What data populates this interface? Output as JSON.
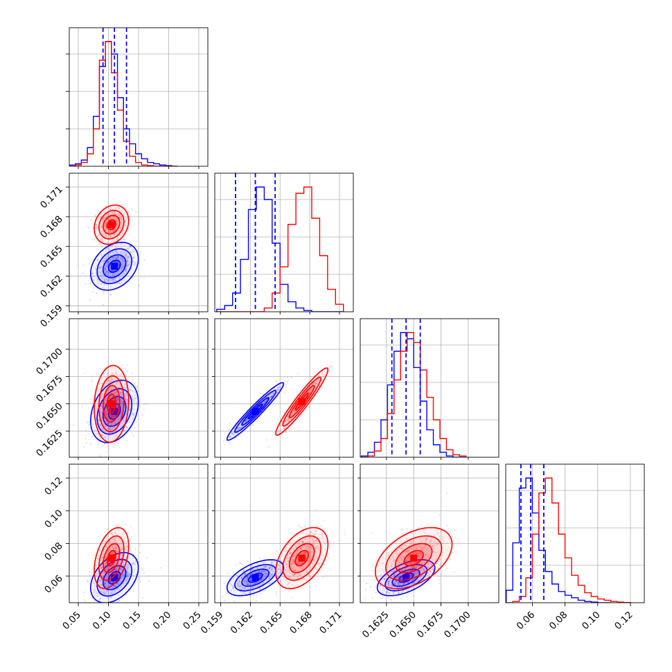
{
  "colors": {
    "series_a": "#0000ff",
    "series_b": "#ff0000",
    "grid": "#b0b0b0",
    "quantile_line": "#0000ff"
  },
  "chart_data": {
    "type": "corner",
    "grid": true,
    "variables": [
      {
        "range": [
          0.035,
          0.265
        ],
        "ticks": [
          0.05,
          0.1,
          0.15,
          0.2,
          0.25
        ],
        "tick_labels": [
          "0.05",
          "0.10",
          "0.15",
          "0.20",
          "0.25"
        ]
      },
      {
        "range": [
          0.1584,
          0.1724
        ],
        "ticks": [
          0.159,
          0.162,
          0.165,
          0.168,
          0.171
        ],
        "tick_labels": [
          "0.159",
          "0.162",
          "0.165",
          "0.168",
          "0.171"
        ]
      },
      {
        "range": [
          0.1601,
          0.1728
        ],
        "ticks": [
          0.1625,
          0.165,
          0.1675,
          0.17
        ],
        "tick_labels": [
          "0.1625",
          "0.1650",
          "0.1675",
          "0.1700"
        ]
      },
      {
        "range": [
          0.0437,
          0.1285
        ],
        "ticks": [
          0.06,
          0.08,
          0.1,
          0.12
        ],
        "tick_labels": [
          "0.06",
          "0.08",
          "0.10",
          "0.12"
        ]
      }
    ],
    "histograms": [
      {
        "blue_quantile_lines": [
          0.091,
          0.11,
          0.13
        ],
        "blue": {
          "x": [
            0.04,
            0.05,
            0.06,
            0.07,
            0.08,
            0.09,
            0.1,
            0.11,
            0.12,
            0.13,
            0.14,
            0.15,
            0.16,
            0.17,
            0.18,
            0.19,
            0.2,
            0.21
          ],
          "y": [
            0.01,
            0.02,
            0.05,
            0.15,
            0.4,
            0.8,
            1.0,
            0.9,
            0.55,
            0.3,
            0.18,
            0.1,
            0.06,
            0.03,
            0.02,
            0.01,
            0.005,
            0.0
          ]
        },
        "red": {
          "x": [
            0.04,
            0.05,
            0.06,
            0.07,
            0.08,
            0.09,
            0.1,
            0.11,
            0.12,
            0.13,
            0.14,
            0.15,
            0.16,
            0.17,
            0.18,
            0.19,
            0.2,
            0.21
          ],
          "y": [
            0.0,
            0.01,
            0.03,
            0.1,
            0.3,
            0.85,
            1.0,
            0.75,
            0.45,
            0.2,
            0.08,
            0.03,
            0.01,
            0.005,
            0.0,
            0.0,
            0.0,
            0.0
          ]
        }
      },
      {
        "blue_quantile_lines": [
          0.1605,
          0.1625,
          0.1645
        ],
        "blue": {
          "x": [
            0.159,
            0.1598,
            0.1606,
            0.1614,
            0.1622,
            0.163,
            0.1638,
            0.1646,
            0.1654,
            0.1662,
            0.167,
            0.1678,
            0.1686,
            0.1694,
            0.1702,
            0.171
          ],
          "y": [
            0.02,
            0.05,
            0.15,
            0.42,
            0.82,
            1.0,
            0.9,
            0.55,
            0.22,
            0.08,
            0.03,
            0.01,
            0.0,
            0.0,
            0.0,
            0.0
          ]
        },
        "red": {
          "x": [
            0.159,
            0.1598,
            0.1606,
            0.1614,
            0.1622,
            0.163,
            0.1638,
            0.1646,
            0.1654,
            0.1662,
            0.167,
            0.1678,
            0.1686,
            0.1694,
            0.1702,
            0.171
          ],
          "y": [
            0.0,
            0.0,
            0.0,
            0.0,
            0.0,
            0.0,
            0.03,
            0.15,
            0.36,
            0.7,
            0.95,
            1.0,
            0.75,
            0.45,
            0.18,
            0.06
          ]
        }
      },
      {
        "blue_quantile_lines": [
          0.163,
          0.1643,
          0.1656
        ],
        "blue": {
          "x": [
            0.1605,
            0.1611,
            0.1617,
            0.1623,
            0.1629,
            0.1635,
            0.1641,
            0.1647,
            0.1653,
            0.1659,
            0.1665,
            0.1671,
            0.1677,
            0.1683,
            0.1689,
            0.1695
          ],
          "y": [
            0.01,
            0.04,
            0.12,
            0.3,
            0.58,
            0.85,
            1.0,
            0.95,
            0.72,
            0.45,
            0.22,
            0.1,
            0.04,
            0.01,
            0.0,
            0.0
          ]
        },
        "red": {
          "x": [
            0.1605,
            0.1611,
            0.1617,
            0.1623,
            0.1629,
            0.1635,
            0.1641,
            0.1647,
            0.1653,
            0.1659,
            0.1665,
            0.1671,
            0.1677,
            0.1683,
            0.1689,
            0.1695
          ],
          "y": [
            0.0,
            0.01,
            0.05,
            0.15,
            0.35,
            0.62,
            0.85,
            1.0,
            0.92,
            0.7,
            0.48,
            0.3,
            0.15,
            0.06,
            0.02,
            0.01
          ]
        }
      },
      {
        "blue_quantile_lines": [
          0.053,
          0.059,
          0.067
        ],
        "blue": {
          "x": [
            0.046,
            0.05,
            0.054,
            0.058,
            0.062,
            0.066,
            0.07,
            0.074,
            0.078,
            0.082,
            0.086,
            0.09,
            0.094,
            0.098,
            0.102,
            0.106
          ],
          "y": [
            0.1,
            0.48,
            0.92,
            1.0,
            0.72,
            0.42,
            0.25,
            0.15,
            0.09,
            0.06,
            0.04,
            0.02,
            0.01,
            0.005,
            0.0,
            0.0
          ]
        },
        "red": {
          "x": [
            0.046,
            0.05,
            0.054,
            0.058,
            0.062,
            0.066,
            0.07,
            0.074,
            0.078,
            0.082,
            0.086,
            0.09,
            0.094,
            0.098,
            0.102,
            0.106,
            0.11,
            0.114,
            0.118
          ],
          "y": [
            0.0,
            0.01,
            0.05,
            0.2,
            0.55,
            0.88,
            1.0,
            0.8,
            0.55,
            0.36,
            0.22,
            0.14,
            0.08,
            0.05,
            0.03,
            0.02,
            0.01,
            0.005,
            0.002
          ]
        }
      }
    ],
    "blobs": [
      {
        "row": 1,
        "col": 0,
        "blue": {
          "cx": 0.11,
          "cy": 0.163,
          "sx": 0.018,
          "sy": 0.0011,
          "rho": 0.3
        },
        "red": {
          "cx": 0.105,
          "cy": 0.1672,
          "sx": 0.013,
          "sy": 0.0009,
          "rho": 0.2
        }
      },
      {
        "row": 2,
        "col": 0,
        "blue": {
          "cx": 0.11,
          "cy": 0.1643,
          "sx": 0.018,
          "sy": 0.0013,
          "rho": 0.3
        },
        "red": {
          "cx": 0.105,
          "cy": 0.165,
          "sx": 0.013,
          "sy": 0.0016,
          "rho": 0.1
        }
      },
      {
        "row": 2,
        "col": 1,
        "blue": {
          "cx": 0.1625,
          "cy": 0.1643,
          "sx": 0.0013,
          "sy": 0.0012,
          "rho": 0.96
        },
        "red": {
          "cx": 0.1672,
          "cy": 0.1652,
          "sx": 0.0012,
          "sy": 0.0014,
          "rho": 0.95
        }
      },
      {
        "row": 3,
        "col": 0,
        "blue": {
          "cx": 0.11,
          "cy": 0.059,
          "sx": 0.018,
          "sy": 0.007,
          "rho": 0.4
        },
        "red": {
          "cx": 0.105,
          "cy": 0.071,
          "sx": 0.013,
          "sy": 0.0085,
          "rho": 0.4
        }
      },
      {
        "row": 3,
        "col": 1,
        "blue": {
          "cx": 0.1625,
          "cy": 0.059,
          "sx": 0.0013,
          "sy": 0.005,
          "rho": 0.55
        },
        "red": {
          "cx": 0.1672,
          "cy": 0.071,
          "sx": 0.0012,
          "sy": 0.0085,
          "rho": 0.45
        }
      },
      {
        "row": 3,
        "col": 2,
        "blue": {
          "cx": 0.1643,
          "cy": 0.059,
          "sx": 0.0012,
          "sy": 0.005,
          "rho": 0.55
        },
        "red": {
          "cx": 0.165,
          "cy": 0.071,
          "sx": 0.0016,
          "sy": 0.0085,
          "rho": 0.45
        }
      }
    ]
  }
}
